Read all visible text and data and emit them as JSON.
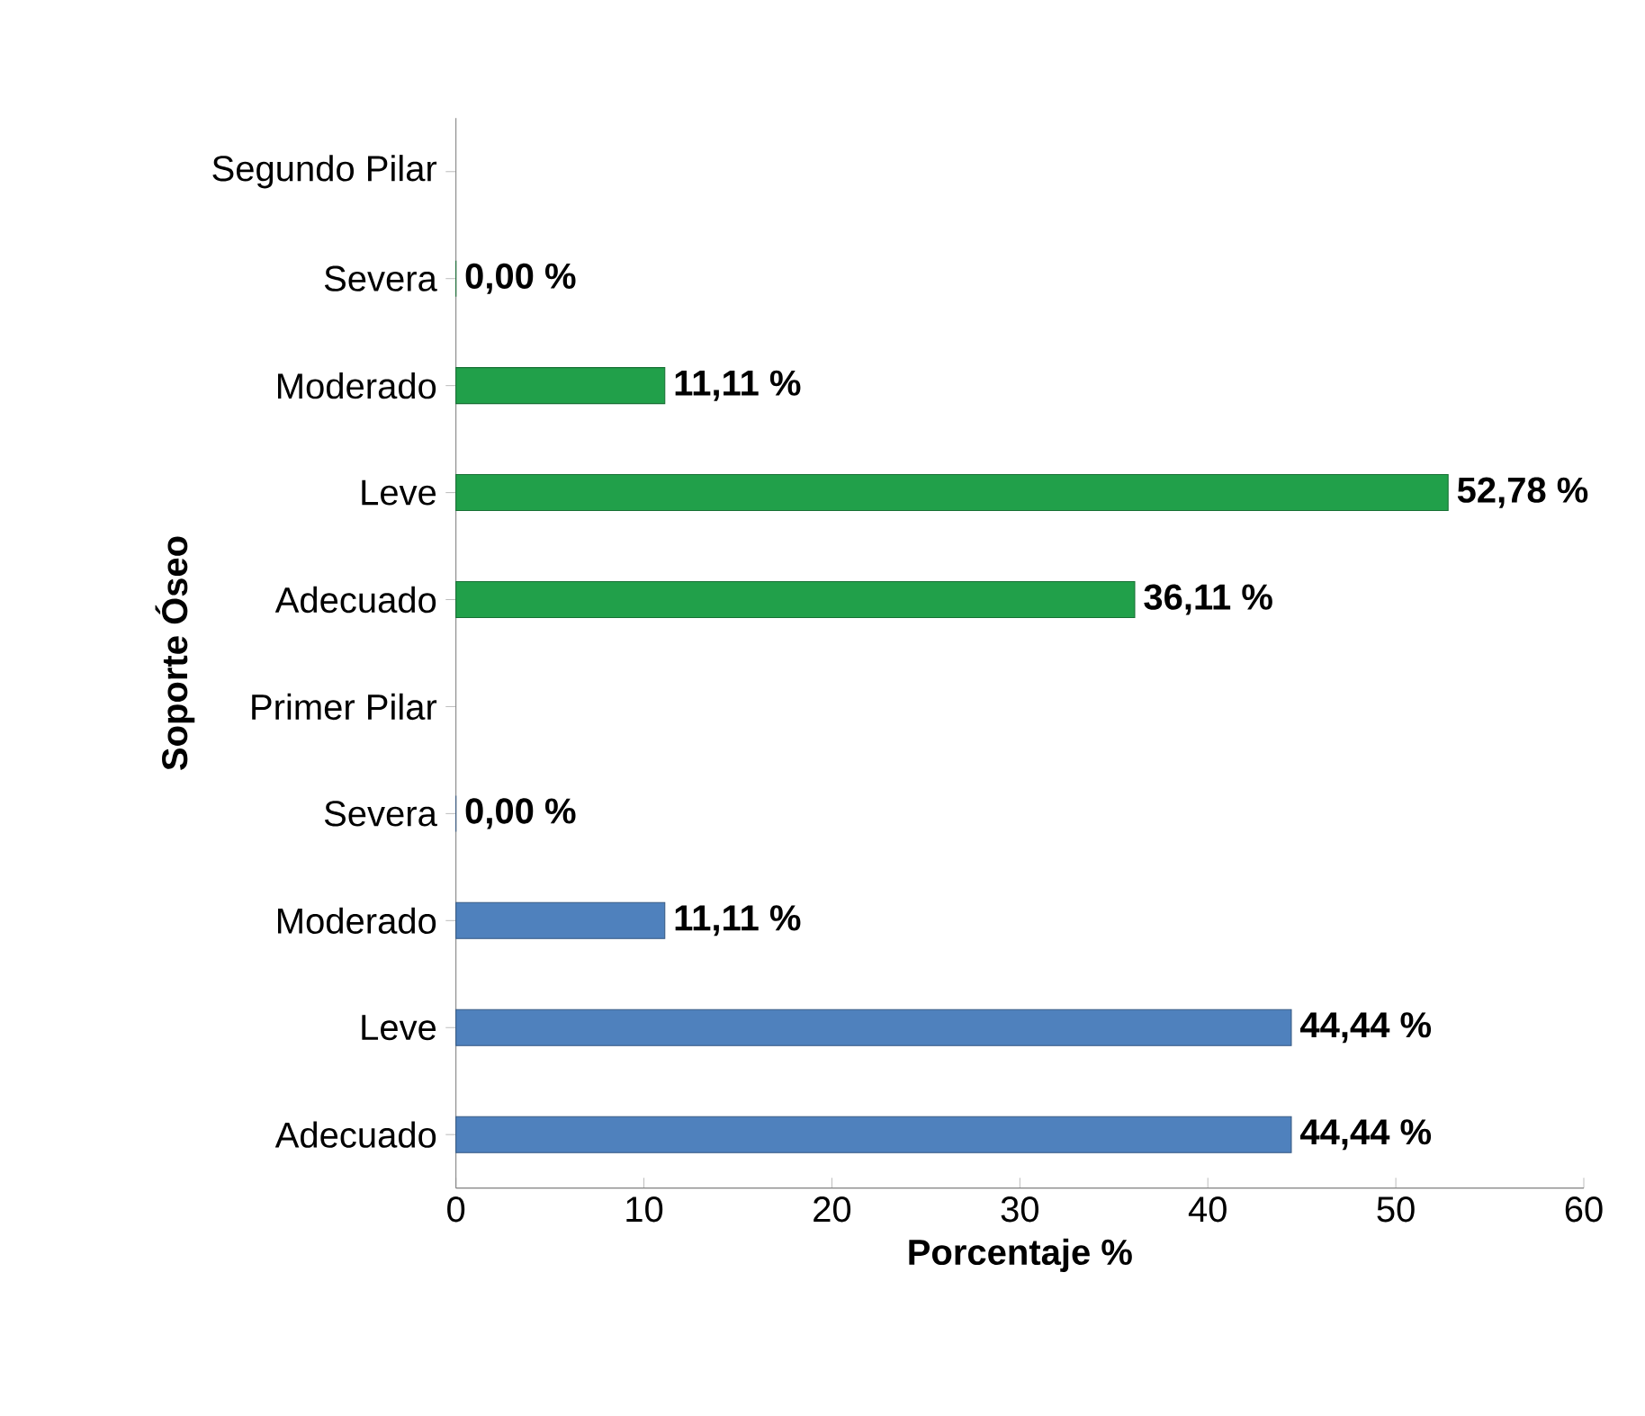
{
  "chart_data": {
    "type": "bar",
    "orientation": "horizontal",
    "xlabel": "Porcentaje %",
    "ylabel": "Soporte Óseo",
    "categories": [
      "Segundo Pilar",
      "Severa",
      "Moderado",
      "Leve",
      "Adecuado",
      "Primer Pilar",
      "Severa",
      "Moderado",
      "Leve",
      "Adecuado"
    ],
    "values": [
      null,
      0,
      11.11,
      52.78,
      36.11,
      null,
      0,
      11.11,
      44.44,
      44.44
    ],
    "value_labels": [
      null,
      "0,00 %",
      "11,11 %",
      "52,78 %",
      "36,11 %",
      null,
      "0,00 %",
      "11,11 %",
      "44,44 %",
      "44,44 %"
    ],
    "colors": [
      null,
      "#21a04a",
      "#21a04a",
      "#21a04a",
      "#21a04a",
      null,
      "#4f81bd",
      "#4f81bd",
      "#4f81bd",
      "#4f81bd"
    ],
    "xlim": [
      0,
      60
    ],
    "xticks": [
      0,
      10,
      20,
      30,
      40,
      50,
      60
    ],
    "grid": false
  }
}
